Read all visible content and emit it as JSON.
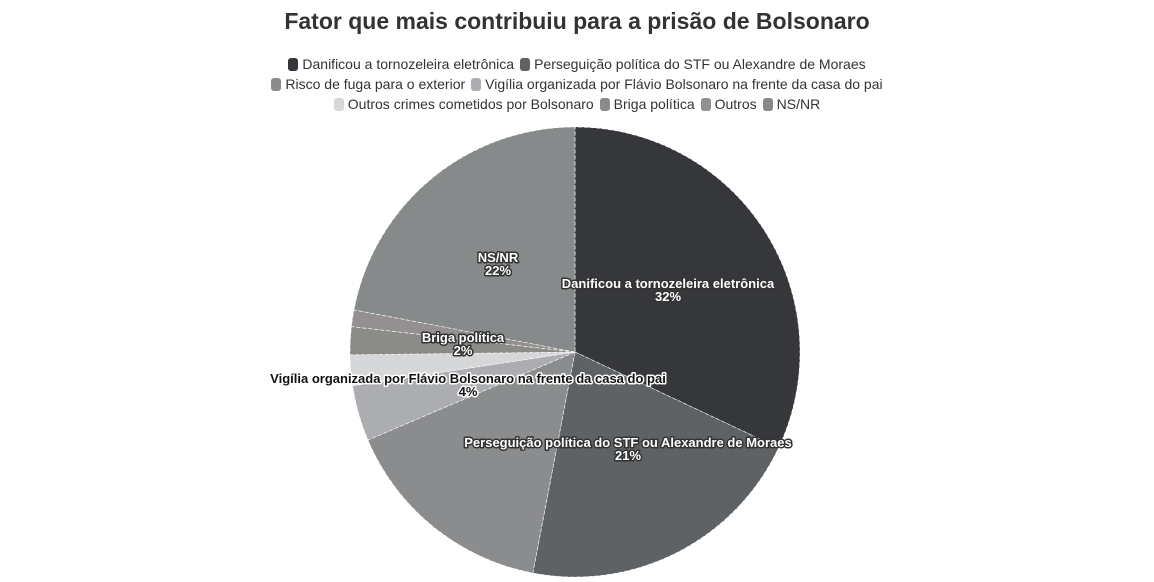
{
  "chart_data": {
    "type": "pie",
    "title": "Fator que mais contribuiu para a prisão de Bolsonaro",
    "legend_position": "top",
    "slices": [
      {
        "label": "Danificou a tornozeleira eletrônica",
        "value": 32,
        "color": "#36373a",
        "shown": "32%"
      },
      {
        "label": "Perseguição política do STF ou Alexandre de Moraes",
        "value": 21,
        "color": "#5f6265",
        "shown": "21%"
      },
      {
        "label": "Risco de fuga para o exterior",
        "value": 15.6,
        "color": "#8a8c8e",
        "shown": null
      },
      {
        "label": "Vigília organizada por Flávio Bolsonaro na frente da casa do pai",
        "value": 4,
        "color": "#abadb0",
        "shown": "4%"
      },
      {
        "label": "Outros crimes cometidos por Bolsonaro",
        "value": 2.2,
        "color": "#d6d7d9",
        "shown": null
      },
      {
        "label": "Briga política",
        "value": 2,
        "color": "#8b8c88",
        "shown": "2%"
      },
      {
        "label": "Outros",
        "value": 1.2,
        "color": "#948f90",
        "shown": null
      },
      {
        "label": "NS/NR",
        "value": 22,
        "color": "#878a8b",
        "shown": "22%"
      }
    ]
  }
}
